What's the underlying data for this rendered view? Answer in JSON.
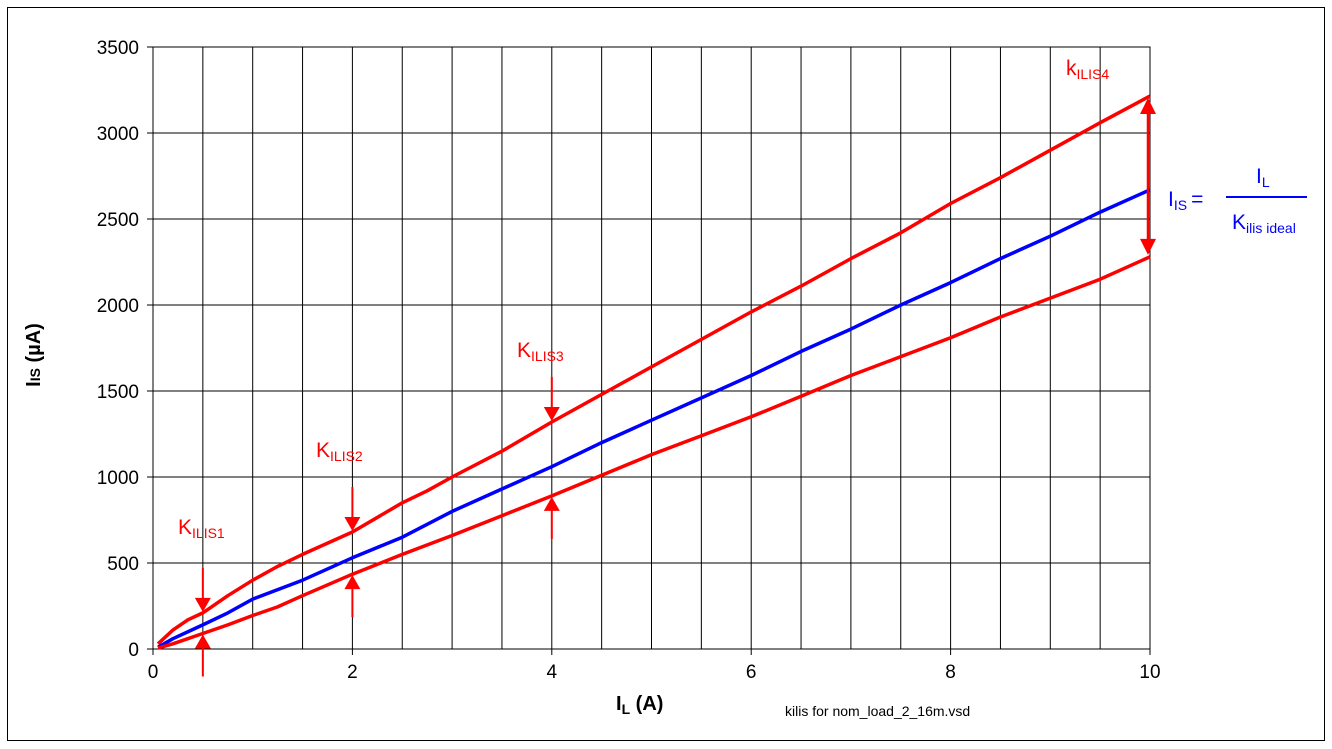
{
  "colors": {
    "limit": "#ff0000",
    "ideal": "#0000ff",
    "grid": "#000000"
  },
  "chart_data": {
    "type": "line",
    "xlabel": {
      "main": "I",
      "sub": "L",
      "unit": " (A)"
    },
    "ylabel": {
      "main": "I",
      "sub": "IS",
      "unit": " (µA)"
    },
    "xlim": [
      0,
      10
    ],
    "ylim": [
      0,
      3500
    ],
    "x_ticks": [
      "0",
      "2",
      "4",
      "6",
      "8",
      "10"
    ],
    "y_ticks": [
      "0",
      "500",
      "1000",
      "1500",
      "2000",
      "2500",
      "3000",
      "3500"
    ],
    "grid": true,
    "series": [
      {
        "color": "#ff0000",
        "x": [
          0.05,
          0.2,
          0.35,
          0.5,
          0.75,
          1.0,
          1.25,
          1.5,
          2.0,
          2.5,
          2.75,
          3.0,
          3.5,
          4.0,
          4.5,
          5.0,
          5.5,
          6.0,
          6.5,
          7.0,
          7.5,
          8.0,
          8.5,
          9.0,
          9.5,
          10.0
        ],
        "y": [
          30,
          110,
          170,
          210,
          310,
          400,
          480,
          550,
          680,
          850,
          920,
          1000,
          1150,
          1320,
          1480,
          1640,
          1800,
          1960,
          2110,
          2270,
          2420,
          2590,
          2740,
          2900,
          3060,
          3215
        ]
      },
      {
        "color": "#0000ff",
        "x": [
          0.05,
          0.2,
          0.5,
          0.75,
          1.0,
          1.5,
          2.0,
          2.5,
          3.0,
          3.5,
          4.0,
          4.5,
          5.0,
          5.5,
          6.0,
          6.5,
          7.0,
          7.5,
          8.0,
          8.5,
          9.0,
          9.5,
          10.0
        ],
        "y": [
          10,
          60,
          140,
          210,
          290,
          400,
          530,
          650,
          800,
          930,
          1060,
          1200,
          1330,
          1460,
          1590,
          1730,
          1860,
          2000,
          2130,
          2270,
          2400,
          2540,
          2670
        ]
      },
      {
        "color": "#ff0000",
        "x": [
          0.05,
          0.2,
          0.5,
          0.75,
          1.0,
          1.25,
          1.5,
          2.0,
          2.5,
          3.0,
          3.5,
          4.0,
          4.5,
          5.0,
          5.5,
          6.0,
          6.5,
          7.0,
          7.5,
          8.0,
          8.5,
          9.0,
          9.5,
          10.0
        ],
        "y": [
          5,
          30,
          90,
          140,
          195,
          245,
          310,
          435,
          550,
          660,
          775,
          890,
          1010,
          1130,
          1240,
          1350,
          1470,
          1590,
          1700,
          1810,
          1930,
          2040,
          2150,
          2280
        ]
      }
    ],
    "annotations": [
      {
        "name": "K",
        "sub": "ILIS1",
        "x": 0.5,
        "upper": 210,
        "lower": 90
      },
      {
        "name": "K",
        "sub": "ILIS2",
        "x": 2.0,
        "upper": 680,
        "lower": 435
      },
      {
        "name": "K",
        "sub": "ILIS3",
        "x": 4.0,
        "upper": 1320,
        "lower": 890
      },
      {
        "name": "k",
        "sub": "ILIS4",
        "x": 10.0,
        "upper": 3215,
        "lower": 2280
      }
    ],
    "formula": {
      "lhs_main": "I",
      "lhs_sub": "IS",
      "eq": "=",
      "num_main": "I",
      "num_sub": "L",
      "den_main": "K",
      "den_sub": "ilis ideal"
    }
  },
  "footer": {
    "source": "kilis for nom_load_2_16m.vsd"
  }
}
